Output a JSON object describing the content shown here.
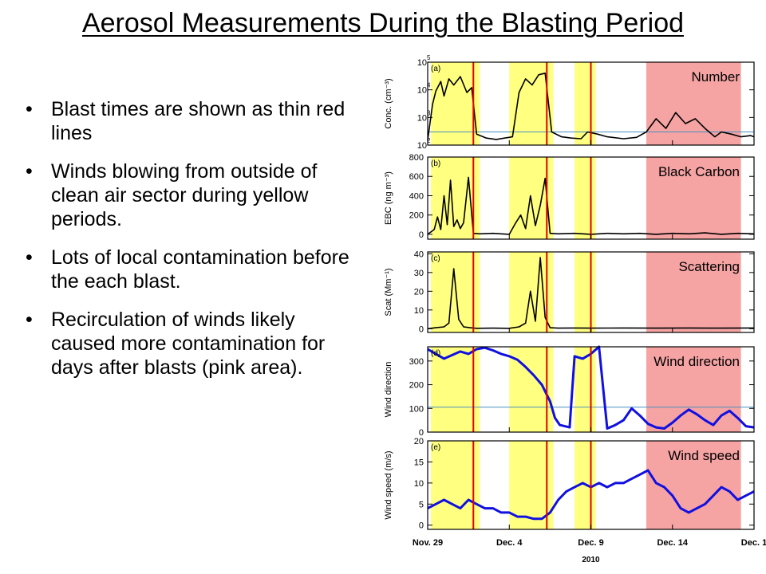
{
  "slide": {
    "title": "Aerosol Measurements During the Blasting Period",
    "bullets": [
      "Blast times are shown as thin red lines",
      "Winds blowing from outside of clean air sector during yellow periods.",
      "Lots of local contamination before the each blast.",
      "Recirculation of winds likely caused more contamination for days after blasts (pink area)."
    ]
  },
  "colors": {
    "yellow_band": "#ffff80",
    "pink_band": "#f5a3a3",
    "blast_line": "#e00000",
    "series_black": "#000000",
    "series_blue": "#1010e0",
    "reference_line": "#4a90c0"
  },
  "chart_data": {
    "type": "line",
    "x_axis": {
      "tick_labels": [
        "Nov. 29",
        "Dec. 4",
        "Dec. 9",
        "Dec. 14",
        "Dec. 1"
      ],
      "tick_values": [
        0,
        5,
        10,
        15,
        20
      ],
      "range": [
        0,
        20
      ],
      "label": "2010"
    },
    "yellow_periods": [
      [
        0.2,
        3.2
      ],
      [
        5.0,
        7.7
      ],
      [
        9.0,
        10.3
      ]
    ],
    "pink_period": [
      13.4,
      19.2
    ],
    "blast_times": [
      2.8,
      7.3,
      10.0
    ],
    "panels": [
      {
        "id": "number",
        "tag": "(a)",
        "title": "Number",
        "ylabel": "Conc. (cm⁻³)",
        "scale": "log",
        "ylim": [
          100,
          100000
        ],
        "ytick_values": [
          100,
          1000,
          10000,
          100000
        ],
        "ytick_labels": [
          "10",
          "10",
          "10",
          "10"
        ],
        "ytick_exps": [
          "2",
          "3",
          "4",
          "5"
        ],
        "reference_line": 300,
        "series": [
          {
            "color": "black",
            "x": [
              0,
              0.3,
              0.5,
              0.8,
              1.0,
              1.3,
              1.6,
              2.0,
              2.4,
              2.7,
              3.0,
              3.6,
              4.2,
              5.2,
              5.6,
              6.0,
              6.4,
              6.8,
              7.2,
              7.6,
              8.2,
              8.8,
              9.4,
              9.8,
              10.4,
              11.0,
              12.0,
              12.8,
              13.4,
              14.0,
              14.6,
              15.2,
              15.8,
              16.4,
              17.0,
              17.6,
              18.0,
              18.6,
              19.2,
              19.8,
              20
            ],
            "y": [
              150,
              3000,
              9000,
              20000,
              6000,
              25000,
              15000,
              30000,
              8000,
              12000,
              250,
              180,
              160,
              200,
              8000,
              25000,
              15000,
              35000,
              40000,
              300,
              200,
              180,
              170,
              300,
              250,
              200,
              170,
              190,
              300,
              900,
              400,
              1500,
              600,
              900,
              400,
              200,
              300,
              250,
              200,
              220,
              200
            ]
          }
        ]
      },
      {
        "id": "black_carbon",
        "tag": "(b)",
        "title": "Black Carbon",
        "ylabel": "EBC (ng m⁻³)",
        "scale": "linear",
        "ylim": [
          -50,
          800
        ],
        "ytick_values": [
          0,
          200,
          400,
          600,
          800
        ],
        "ytick_labels": [
          "0",
          "200",
          "400",
          "600",
          "800"
        ],
        "series": [
          {
            "color": "black",
            "x": [
              0,
              0.4,
              0.6,
              0.8,
              1.0,
              1.2,
              1.4,
              1.6,
              1.8,
              2.0,
              2.2,
              2.5,
              2.8,
              3.2,
              4.0,
              5.0,
              5.4,
              5.7,
              6.0,
              6.3,
              6.6,
              6.9,
              7.2,
              7.5,
              8.0,
              9.0,
              10.0,
              11.0,
              12.0,
              13.0,
              14.0,
              15.0,
              16.0,
              17.0,
              18.0,
              19.0,
              20
            ],
            "y": [
              0,
              50,
              180,
              50,
              400,
              100,
              560,
              80,
              150,
              60,
              120,
              590,
              10,
              5,
              10,
              0,
              120,
              200,
              60,
              400,
              90,
              300,
              580,
              10,
              5,
              10,
              0,
              10,
              5,
              10,
              0,
              10,
              5,
              15,
              0,
              10,
              5
            ]
          }
        ]
      },
      {
        "id": "scattering",
        "tag": "(c)",
        "title": "Scattering",
        "ylabel": "Scat (Mm⁻¹)",
        "scale": "linear",
        "ylim": [
          -2,
          41
        ],
        "ytick_values": [
          0,
          10,
          20,
          30,
          40
        ],
        "ytick_labels": [
          "0",
          "10",
          "20",
          "30",
          "40"
        ],
        "series": [
          {
            "color": "black",
            "x": [
              0,
              0.5,
              1.0,
              1.3,
              1.6,
              1.9,
              2.2,
              2.6,
              3.0,
              4.0,
              5.0,
              5.6,
              6.0,
              6.3,
              6.6,
              6.9,
              7.2,
              7.5,
              8.0,
              9.0,
              10.0,
              12.0,
              14.0,
              16.0,
              18.0,
              20
            ],
            "y": [
              0,
              0.5,
              1,
              3,
              32,
              5,
              1,
              0.5,
              0.2,
              0.3,
              0.2,
              1,
              3,
              20,
              4,
              38,
              6,
              0.5,
              0.3,
              0.4,
              0.3,
              0.4,
              0.3,
              0.4,
              0.3,
              0.4
            ]
          }
        ]
      },
      {
        "id": "wind_direction",
        "tag": "(d)",
        "title": "Wind direction",
        "ylabel": "Wind direction",
        "scale": "linear",
        "ylim": [
          0,
          360
        ],
        "ytick_values": [
          0,
          100,
          200,
          300
        ],
        "ytick_labels": [
          "0",
          "100",
          "200",
          "300"
        ],
        "reference_line": 105,
        "series": [
          {
            "color": "blue",
            "x": [
              0,
              0.5,
              1.0,
              1.5,
              2.0,
              2.5,
              3.0,
              3.5,
              4.0,
              4.5,
              5.0,
              5.5,
              6.0,
              6.5,
              7.0,
              7.5,
              7.8,
              8.1,
              8.4,
              8.7,
              9.0,
              9.5,
              10.0,
              10.5,
              11.0,
              11.5,
              12.0,
              12.5,
              13.0,
              13.5,
              14.0,
              14.5,
              15.0,
              15.5,
              16.0,
              16.5,
              17.0,
              17.5,
              18.0,
              18.5,
              19.0,
              19.5,
              20
            ],
            "y": [
              350,
              330,
              310,
              325,
              340,
              330,
              350,
              356,
              345,
              330,
              320,
              305,
              275,
              240,
              200,
              130,
              60,
              30,
              25,
              20,
              320,
              310,
              330,
              360,
              15,
              30,
              50,
              100,
              70,
              35,
              20,
              15,
              40,
              70,
              95,
              75,
              50,
              30,
              70,
              90,
              60,
              25,
              20
            ]
          }
        ]
      },
      {
        "id": "wind_speed",
        "tag": "(e)",
        "title": "Wind speed",
        "ylabel": "Wind speed (m/s)",
        "scale": "linear",
        "ylim": [
          -1,
          20
        ],
        "ytick_values": [
          0,
          5,
          10,
          15,
          20
        ],
        "ytick_labels": [
          "0",
          "5",
          "10",
          "15",
          "20"
        ],
        "series": [
          {
            "color": "blue",
            "x": [
              0,
              0.5,
              1.0,
              1.5,
              2.0,
              2.5,
              3.0,
              3.5,
              4.0,
              4.5,
              5.0,
              5.5,
              6.0,
              6.5,
              7.0,
              7.5,
              8.0,
              8.5,
              9.0,
              9.5,
              10.0,
              10.5,
              11.0,
              11.5,
              12.0,
              12.5,
              13.0,
              13.5,
              14.0,
              14.5,
              15.0,
              15.5,
              16.0,
              16.5,
              17.0,
              17.5,
              18.0,
              18.5,
              19.0,
              19.5,
              20
            ],
            "y": [
              4,
              5,
              6,
              5,
              4,
              6,
              5,
              4,
              4,
              3,
              3,
              2,
              2,
              1.5,
              1.5,
              3,
              6,
              8,
              9,
              10,
              9,
              10,
              9,
              10,
              10,
              11,
              12,
              13,
              10,
              9,
              7,
              4,
              3,
              4,
              5,
              7,
              9,
              8,
              6,
              7,
              8
            ]
          }
        ]
      }
    ]
  }
}
